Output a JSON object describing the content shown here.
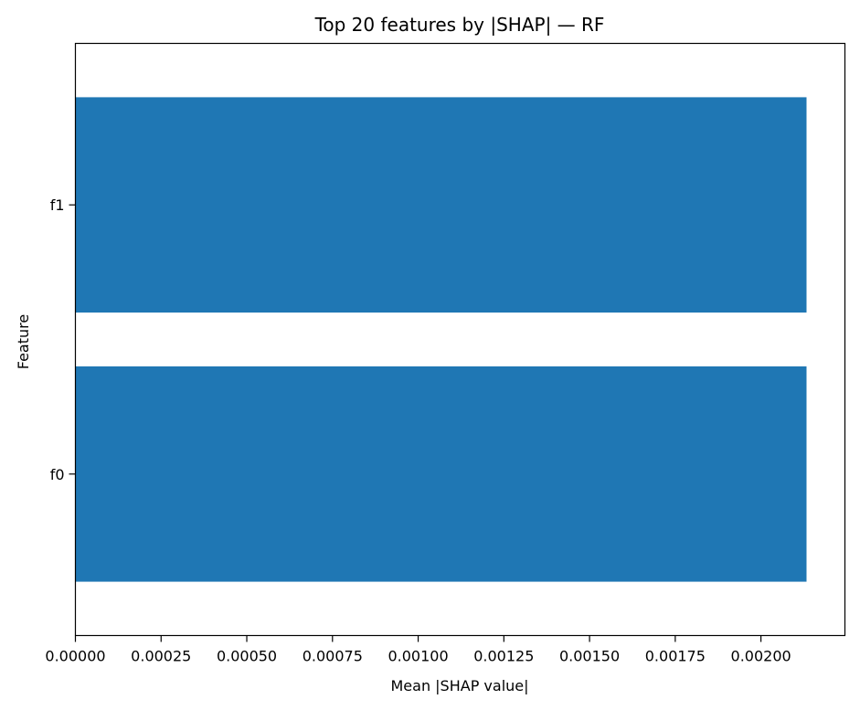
{
  "chart_data": {
    "type": "bar",
    "orientation": "horizontal",
    "title": "Top 20 features by |SHAP| — RF",
    "xlabel": "Mean |SHAP value|",
    "ylabel": "Feature",
    "categories": [
      "f1",
      "f0"
    ],
    "values": [
      0.002133,
      0.002133
    ],
    "xlim": [
      0,
      0.002245
    ],
    "xticks": [
      0,
      0.00025,
      0.0005,
      0.00075,
      0.001,
      0.00125,
      0.0015,
      0.00175,
      0.002
    ],
    "xtick_labels": [
      "0.00000",
      "0.00025",
      "0.00050",
      "0.00075",
      "0.00100",
      "0.00125",
      "0.00150",
      "0.00175",
      "0.00200"
    ],
    "grid": false,
    "bar_color": "#1f77b4"
  }
}
